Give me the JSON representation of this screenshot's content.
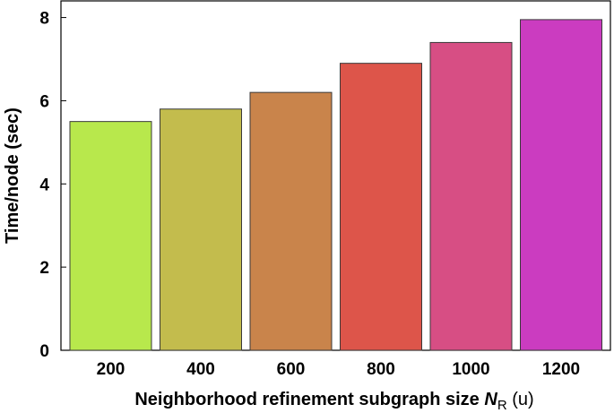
{
  "chart_data": {
    "type": "bar",
    "categories": [
      "200",
      "400",
      "600",
      "800",
      "1000",
      "1200"
    ],
    "values": [
      5.5,
      5.8,
      6.2,
      6.9,
      7.4,
      7.95
    ],
    "colors": [
      "#b8e84c",
      "#c3bc4d",
      "#c9844b",
      "#dd554a",
      "#d74e84",
      "#cb3cc0"
    ],
    "xlabel": {
      "main": "Neighborhood refinement subgraph size ",
      "symbol": "N",
      "subscript": "R",
      "suffix": " (u)"
    },
    "ylabel": "Time/node (sec)",
    "ylim": [
      0,
      8.4
    ],
    "yticks": [
      0,
      2,
      4,
      6,
      8
    ],
    "grid": false
  }
}
